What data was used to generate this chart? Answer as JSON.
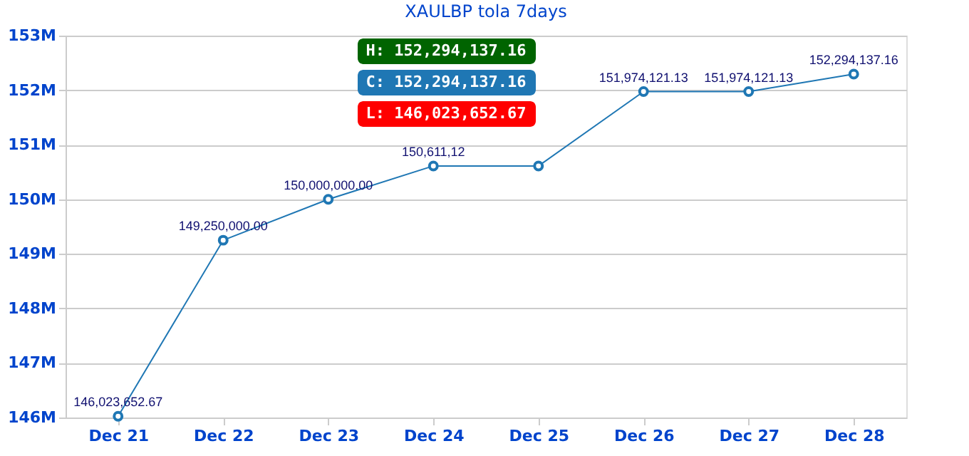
{
  "chart_data": {
    "type": "line",
    "title": "XAULBP tola  7days",
    "categories": [
      "Dec 21",
      "Dec 22",
      "Dec 23",
      "Dec 24",
      "Dec 25",
      "Dec 26",
      "Dec 27",
      "Dec 28"
    ],
    "series": [
      {
        "color": "#1f77b4",
        "values": [
          146023652.67,
          149250000.0,
          150000000.0,
          150611120,
          150611120,
          151974121.13,
          151974121.13,
          152294137.16
        ],
        "value_labels": [
          "146,023,652.67",
          "149,250,000.00",
          "150,000,000.00",
          "150,611,12",
          null,
          "151,974,121.13",
          "151,974,121.13",
          "152,294,137.16"
        ]
      }
    ],
    "ylim": [
      146000000,
      153000000
    ],
    "yticks": [
      {
        "value": 146000000,
        "label": "146M"
      },
      {
        "value": 147000000,
        "label": "147M"
      },
      {
        "value": 148000000,
        "label": "148M"
      },
      {
        "value": 149000000,
        "label": "149M"
      },
      {
        "value": 150000000,
        "label": "150M"
      },
      {
        "value": 151000000,
        "label": "151M"
      },
      {
        "value": 152000000,
        "label": "152M"
      },
      {
        "value": 153000000,
        "label": "153M"
      }
    ],
    "annotations": [
      "H: 152,294,137.16",
      "C: 152,294,137.16",
      "L: 146,023,652.67"
    ],
    "grid": "y",
    "marker": "circle",
    "line_style": "solid",
    "legend": false
  }
}
